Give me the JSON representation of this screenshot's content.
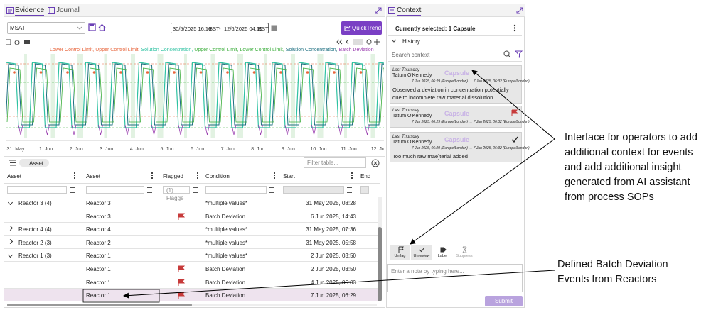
{
  "tabs": [
    "Evidence",
    "Journal"
  ],
  "toolbar": {
    "asset_tree": "MSAT",
    "range_start": "30/5/2025 16:16",
    "range_start_tz": "BST",
    "range_sep": "-",
    "range_end": "12/6/2025 04:16",
    "range_end_tz": "BST",
    "quicktrend": "QuickTrend"
  },
  "trend": {
    "legend": [
      {
        "name": "Lower Control Limit,",
        "color": "#e8663d"
      },
      {
        "name": "Upper Control Limit,",
        "color": "#e8663d"
      },
      {
        "name": "Solution Concentration,",
        "color": "#2fc2a2"
      },
      {
        "name": "Upper Control Limit,",
        "color": "#3cae3c"
      },
      {
        "name": "Lower Control Limit,",
        "color": "#3cae3c"
      },
      {
        "name": "Solution Concentration,",
        "color": "#1d6f80"
      },
      {
        "name": "Batch Deviation",
        "color": "#9b3fb0"
      }
    ],
    "x_labels": [
      "31. May",
      "1. Jun",
      "2. Jun",
      "3. Jun",
      "4. Jun",
      "5. Jun",
      "6. Jun",
      "7. Jun",
      "8. Jun",
      "9. Jun",
      "10. Jun",
      "11. Jun",
      "12. Jun"
    ]
  },
  "table": {
    "chip": "Asset",
    "filter_placeholder": "Filter table...",
    "columns": [
      "Asset",
      "Asset",
      "Flagged",
      "Condition",
      "Start",
      "End"
    ],
    "flagged_filter": "(1) Flagge",
    "rows": [
      {
        "group": "Reactor 3 (4)",
        "expanded": true,
        "asset": "Reactor 3",
        "flagged": false,
        "condition": "*multiple values*",
        "start": "31 May 2025, 08:28"
      },
      {
        "asset": "Reactor 3",
        "flagged": true,
        "condition": "Batch Deviation",
        "start": "6 Jun 2025, 14:43"
      },
      {
        "group": "Reactor 4 (4)",
        "expanded": false,
        "asset": "Reactor 4",
        "flagged": false,
        "condition": "*multiple values*",
        "start": "31 May 2025, 07:36"
      },
      {
        "group": "Reactor 2 (3)",
        "expanded": false,
        "asset": "Reactor 2",
        "flagged": false,
        "condition": "*multiple values*",
        "start": "31 May 2025, 05:58"
      },
      {
        "group": "Reactor 1 (3)",
        "expanded": true,
        "asset": "Reactor 1",
        "flagged": false,
        "condition": "*multiple values*",
        "start": "2 Jun 2025, 03:50"
      },
      {
        "asset": "Reactor 1",
        "flagged": true,
        "condition": "Batch Deviation",
        "start": "2 Jun 2025, 03:50"
      },
      {
        "asset": "Reactor 1",
        "flagged": true,
        "condition": "Batch Deviation",
        "start": "4 Jun 2025, 05:03"
      },
      {
        "asset": "Reactor 1",
        "flagged": true,
        "condition": "Batch Deviation",
        "start": "7 Jun 2025, 06:29",
        "selected": true
      }
    ]
  },
  "context": {
    "tab": "Context",
    "selected": "Currently selected: 1 Capsule",
    "history": "History",
    "search_placeholder": "Search context",
    "cards": [
      {
        "time": "Last Thursday",
        "author": "Tatum O'Kennedy",
        "kind": "Capsule",
        "range": "7 Jun 2025, 06:29 (Europe/London) → 7 Jun 2025, 06:32 (Europe/London)",
        "note": "Observed a deviation in concentration potentially due to incomplete raw material dissolution"
      },
      {
        "time": "Last Thursday",
        "author": "Tatum O'Kennedy",
        "kind": "Capsule",
        "range": "7 Jun 2025, 06:29 (Europe/London) → 7 Jun 2025, 06:32 (Europe/London)",
        "flagged": true
      },
      {
        "time": "Last Thursday",
        "author": "Tatum O'Kennedy",
        "kind": "Capsule",
        "range": "7 Jun 2025, 06:29 (Europe/London) → 7 Jun 2025, 06:32 (Europe/London)",
        "reviewed": true,
        "note": "Too much raw mae]terial added"
      }
    ],
    "actions": [
      "Unflag",
      "Unreview",
      "Label",
      "Suppress"
    ],
    "note_placeholder": "Enter a note by typing here...",
    "submit": "Submit"
  },
  "annotations": [
    "Interface for operators to add additional context for events and add additional insight generated from AI assistant from process SOPs",
    "Defined Batch Deviation Events from Reactors"
  ]
}
